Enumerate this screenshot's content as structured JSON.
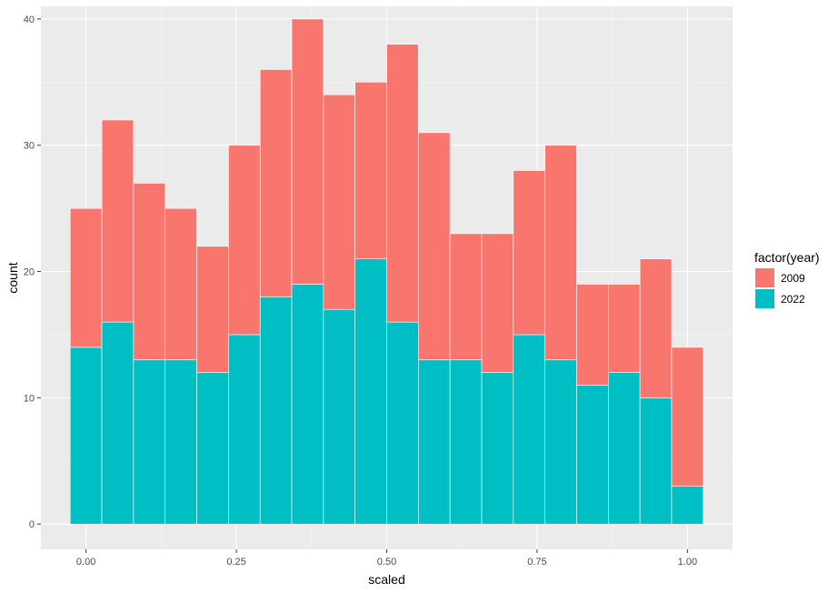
{
  "chart_data": {
    "type": "bar",
    "stacked": true,
    "xlabel": "scaled",
    "ylabel": "count",
    "x_ticks": [
      "0.00",
      "0.25",
      "0.50",
      "0.75",
      "1.00"
    ],
    "y_ticks": [
      "0",
      "10",
      "20",
      "30",
      "40"
    ],
    "xlim": [
      -0.075,
      1.075
    ],
    "ylim": [
      -2,
      41
    ],
    "bin_width": 0.0526,
    "bin_centers": [
      0.0,
      0.0526,
      0.1053,
      0.1579,
      0.2105,
      0.2632,
      0.3158,
      0.3684,
      0.4211,
      0.4737,
      0.5263,
      0.5789,
      0.6316,
      0.6842,
      0.7368,
      0.7895,
      0.8421,
      0.8947,
      0.9474,
      1.0
    ],
    "legend_title": "factor(year)",
    "legend_position": "right",
    "grid": true,
    "series": [
      {
        "name": "2009",
        "color": "#F8766D",
        "values": [
          11,
          16,
          14,
          12,
          10,
          15,
          18,
          21,
          17,
          14,
          22,
          18,
          10,
          11,
          13,
          17,
          8,
          7,
          11,
          11
        ]
      },
      {
        "name": "2022",
        "color": "#00BFC4",
        "values": [
          14,
          16,
          13,
          13,
          12,
          15,
          18,
          19,
          17,
          21,
          16,
          13,
          13,
          12,
          15,
          13,
          11,
          12,
          10,
          3
        ]
      }
    ],
    "stack_order": [
      "2022",
      "2009"
    ],
    "colors": {
      "panel": "#EBEBEB",
      "grid_major": "#FFFFFF",
      "grid_minor": "#F5F5F5",
      "bar_outline": "#FFFFFF"
    }
  }
}
